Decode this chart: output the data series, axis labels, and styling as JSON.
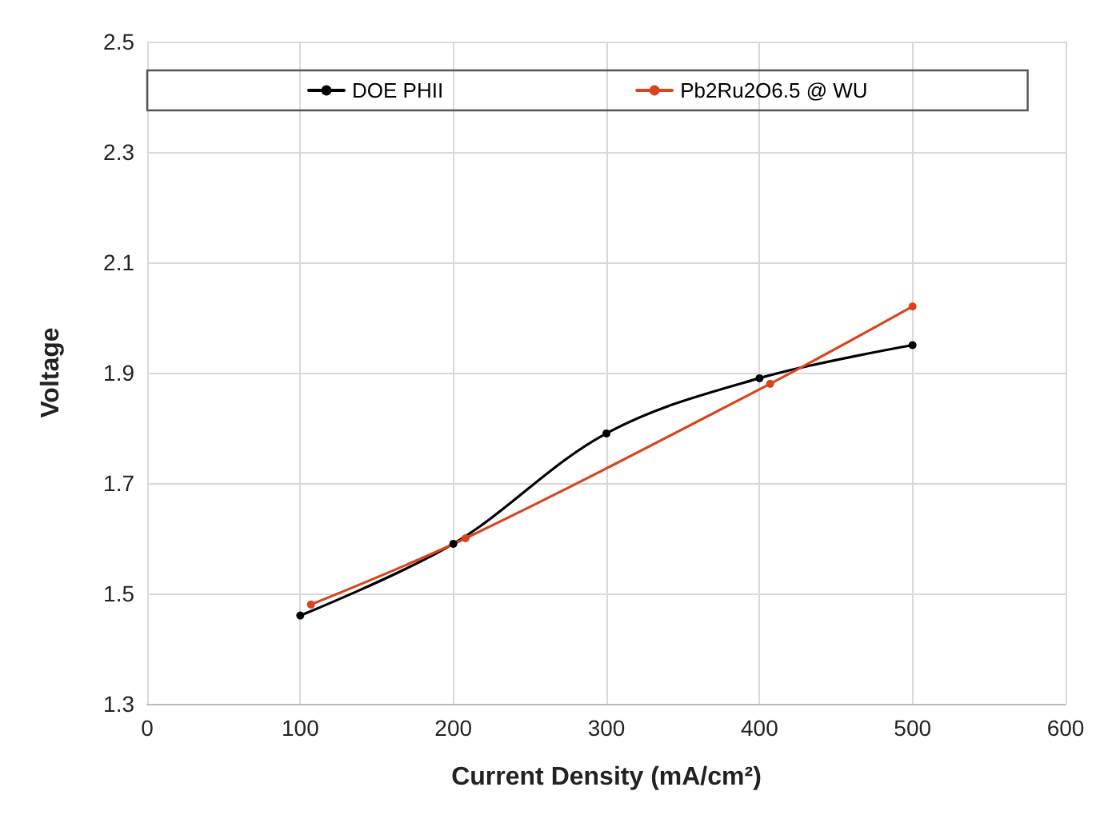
{
  "chart_data": {
    "type": "line",
    "xlabel": "Current Density (mA/cm²)",
    "ylabel": "Voltage",
    "xlim": [
      0,
      600
    ],
    "xticks": [
      0,
      100,
      200,
      300,
      400,
      500,
      600
    ],
    "ylim": [
      1.3,
      2.5
    ],
    "yticks": [
      1.3,
      1.5,
      1.7,
      1.9,
      2.1,
      2.3,
      2.5
    ],
    "grid": true,
    "legend": "top",
    "marker": "circle",
    "line_style": "solid",
    "series": [
      {
        "name": "DOE PHII",
        "color": "#000000",
        "x": [
          100,
          200,
          300,
          400,
          500
        ],
        "values": [
          1.46,
          1.59,
          1.79,
          1.89,
          1.95
        ]
      },
      {
        "name": "Pb2Ru2O6.5 @ WU",
        "color": "#d9441c",
        "x": [
          107,
          208,
          407,
          500
        ],
        "values": [
          1.48,
          1.6,
          1.88,
          2.02
        ]
      }
    ]
  }
}
